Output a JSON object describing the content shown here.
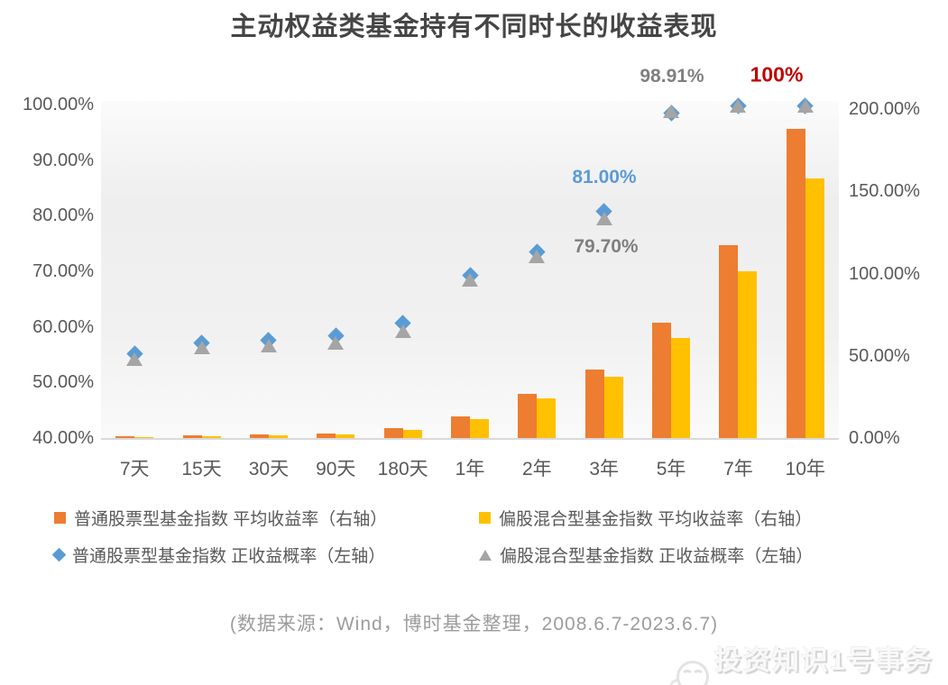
{
  "title": "主动权益类基金持有不同时长的收益表现",
  "chart_data": {
    "type": "combo",
    "categories": [
      "7天",
      "15天",
      "30天",
      "90天",
      "180天",
      "1年",
      "2年",
      "3年",
      "5年",
      "7年",
      "10年"
    ],
    "series": [
      {
        "name": "普通股票型基金指数 平均收益率（右轴）",
        "type": "bar",
        "axis": "right",
        "color": "#ED7D31",
        "values": [
          1.8,
          2.2,
          2.7,
          3.4,
          6.4,
          13.7,
          27.4,
          42.2,
          70.7,
          117.8,
          188.5
        ]
      },
      {
        "name": "偏股混合型基金指数 平均收益率（右轴）",
        "type": "bar",
        "axis": "right",
        "color": "#FFC000",
        "values": [
          1.2,
          1.7,
          2.1,
          2.7,
          5.4,
          12.1,
          24.7,
          37.8,
          61.4,
          101.9,
          158.4
        ]
      },
      {
        "name": "普通股票型基金指数 正收益概率（左轴）",
        "type": "scatter",
        "marker": "diamond",
        "axis": "left",
        "color": "#5B9BD5",
        "values": [
          55.3,
          57.3,
          57.8,
          58.5,
          60.8,
          69.4,
          73.6,
          81.0,
          98.6,
          100,
          100
        ]
      },
      {
        "name": "偏股混合型基金指数 正收益概率（左轴）",
        "type": "scatter",
        "marker": "triangle",
        "axis": "left",
        "color": "#A5A5A5",
        "values": [
          54.4,
          56.4,
          56.8,
          57.3,
          59.3,
          68.6,
          72.8,
          79.7,
          98.91,
          100,
          100
        ]
      }
    ],
    "left_axis": {
      "title": "",
      "min": 40,
      "max": 100,
      "ticks": [
        "40.00%",
        "50.00%",
        "60.00%",
        "70.00%",
        "80.00%",
        "90.00%",
        "100.00%"
      ]
    },
    "right_axis": {
      "title": "",
      "min": 0,
      "max": 200,
      "ticks": [
        "0.00%",
        "50.00%",
        "100.00%",
        "150.00%",
        "200.00%"
      ]
    },
    "grid": false,
    "legend_position": "bottom",
    "annotations": [
      {
        "text": "81.00%",
        "color": "#5B9BD5",
        "target": "3年 普通股票型 正收益概率"
      },
      {
        "text": "79.70%",
        "color": "#7F7F7F",
        "target": "3年 偏股混合型 正收益概率"
      },
      {
        "text": "98.91%",
        "color": "#7F7F7F",
        "target": "5年 偏股混合型 正收益概率"
      },
      {
        "text": "100%",
        "color": "#C00000",
        "target": "7年/10年 正收益概率"
      }
    ]
  },
  "source_note": "(数据来源：Wind，博时基金整理，2008.6.7-2023.6.7)",
  "watermark": "投资知识1号事务所"
}
